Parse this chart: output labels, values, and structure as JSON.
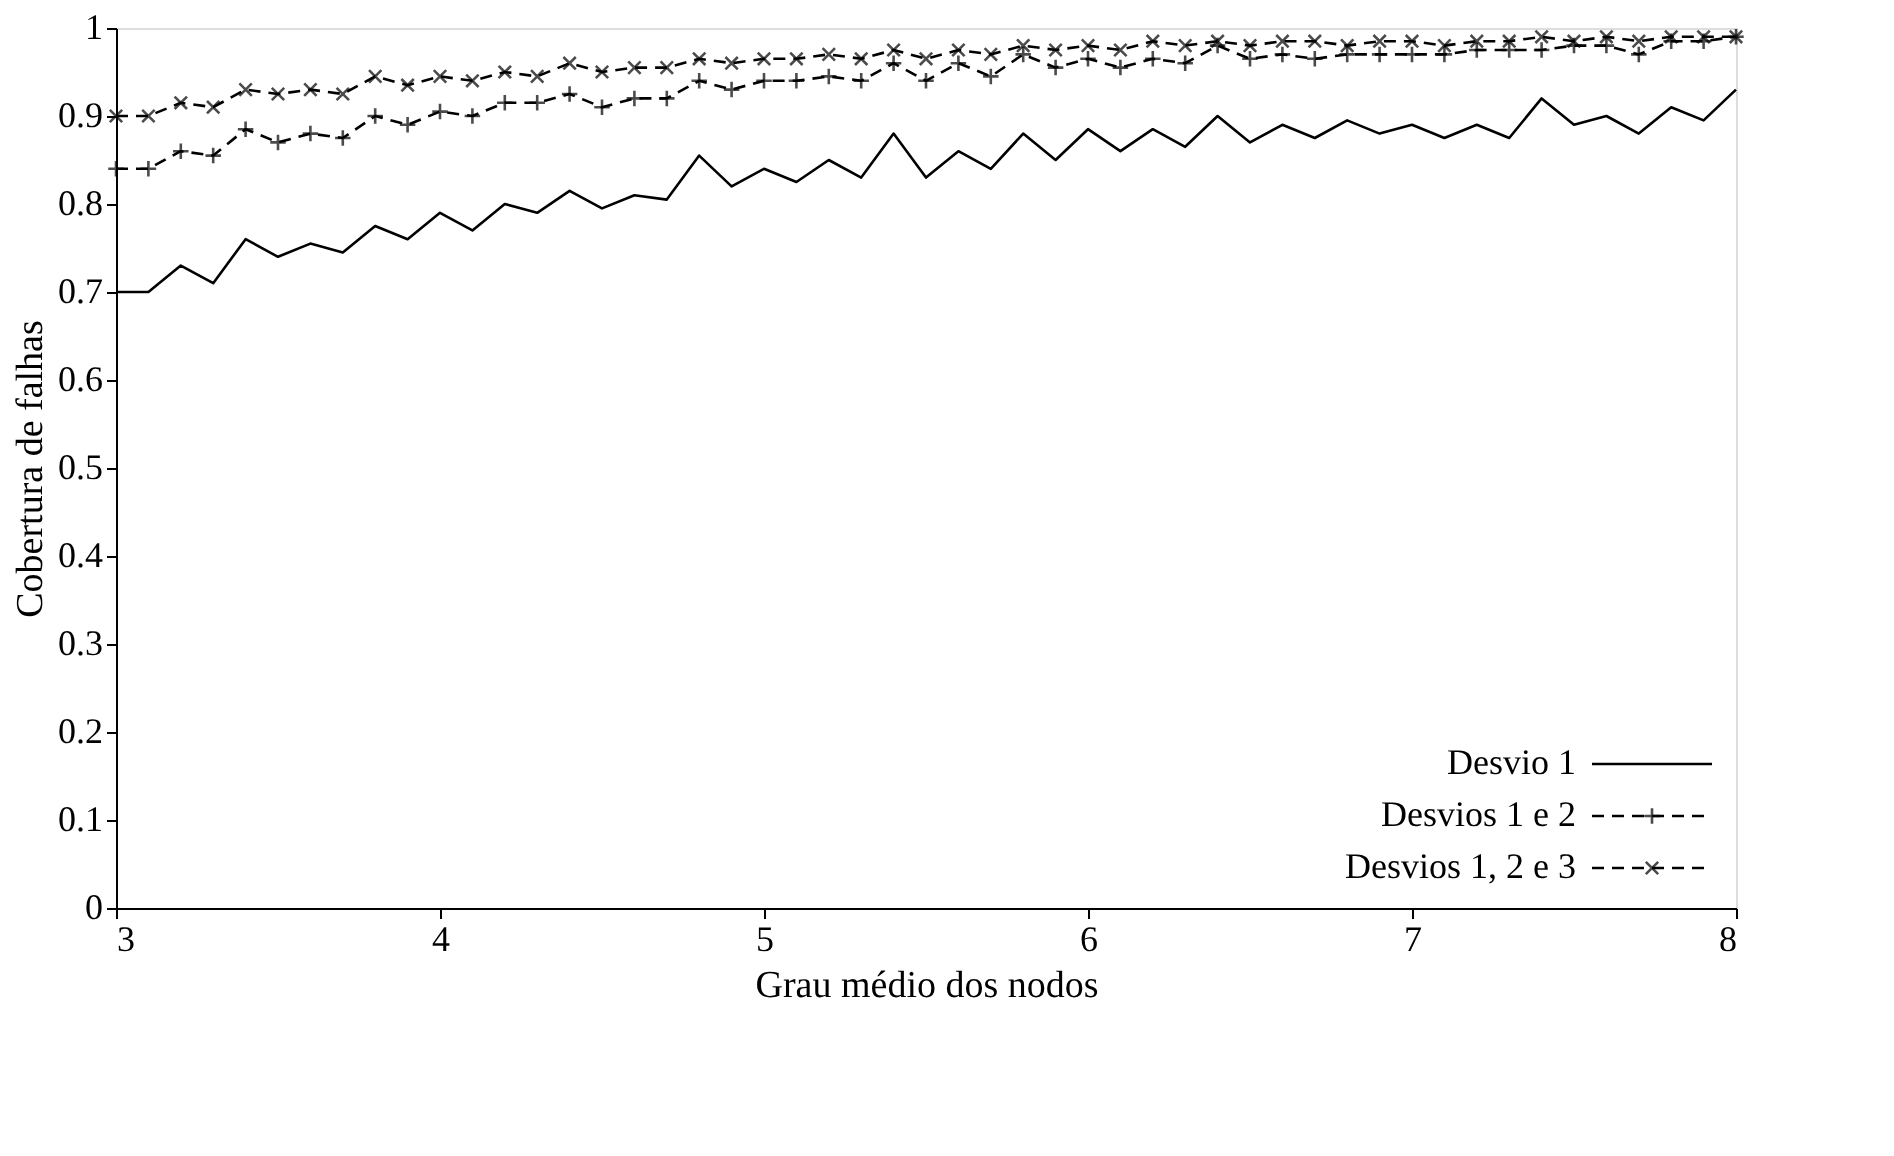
{
  "chart_data": {
    "type": "line",
    "xlabel": "Grau médio dos nodos",
    "ylabel": "Cobertura de falhas",
    "x": [
      3.0,
      3.1,
      3.2,
      3.3,
      3.4,
      3.5,
      3.6,
      3.7,
      3.8,
      3.9,
      4.0,
      4.1,
      4.2,
      4.3,
      4.4,
      4.5,
      4.6,
      4.7,
      4.8,
      4.9,
      5.0,
      5.1,
      5.2,
      5.3,
      5.4,
      5.5,
      5.6,
      5.7,
      5.8,
      5.9,
      6.0,
      6.1,
      6.2,
      6.3,
      6.4,
      6.5,
      6.6,
      6.7,
      6.8,
      6.9,
      7.0,
      7.1,
      7.2,
      7.3,
      7.4,
      7.5,
      7.6,
      7.7,
      7.8,
      7.9,
      8.0
    ],
    "series": [
      {
        "name": "Desvio 1",
        "color": "#000000",
        "marker": "none",
        "line_style": "solid",
        "values": [
          0.7,
          0.7,
          0.73,
          0.71,
          0.76,
          0.74,
          0.755,
          0.745,
          0.775,
          0.76,
          0.79,
          0.77,
          0.8,
          0.79,
          0.815,
          0.795,
          0.81,
          0.805,
          0.855,
          0.82,
          0.84,
          0.825,
          0.85,
          0.83,
          0.88,
          0.83,
          0.86,
          0.84,
          0.88,
          0.85,
          0.885,
          0.86,
          0.885,
          0.865,
          0.9,
          0.87,
          0.89,
          0.875,
          0.895,
          0.88,
          0.89,
          0.875,
          0.89,
          0.875,
          0.92,
          0.89,
          0.9,
          0.88,
          0.91,
          0.895,
          0.93
        ]
      },
      {
        "name": "Desvios 1 e 2",
        "color": "#000000",
        "marker": "cross",
        "line_style": "dashed",
        "values": [
          0.84,
          0.84,
          0.86,
          0.855,
          0.885,
          0.87,
          0.88,
          0.875,
          0.9,
          0.89,
          0.905,
          0.9,
          0.915,
          0.915,
          0.925,
          0.91,
          0.92,
          0.92,
          0.94,
          0.93,
          0.94,
          0.94,
          0.945,
          0.94,
          0.96,
          0.94,
          0.96,
          0.945,
          0.97,
          0.955,
          0.965,
          0.955,
          0.965,
          0.96,
          0.98,
          0.965,
          0.97,
          0.965,
          0.97,
          0.97,
          0.97,
          0.97,
          0.975,
          0.975,
          0.975,
          0.98,
          0.98,
          0.97,
          0.985,
          0.985,
          0.99
        ]
      },
      {
        "name": "Desvios 1, 2 e 3",
        "color": "#000000",
        "marker": "x",
        "line_style": "dashed",
        "values": [
          0.9,
          0.9,
          0.915,
          0.91,
          0.93,
          0.925,
          0.93,
          0.925,
          0.945,
          0.935,
          0.945,
          0.94,
          0.95,
          0.945,
          0.96,
          0.95,
          0.955,
          0.955,
          0.965,
          0.96,
          0.965,
          0.965,
          0.97,
          0.965,
          0.975,
          0.965,
          0.975,
          0.97,
          0.98,
          0.975,
          0.98,
          0.975,
          0.985,
          0.98,
          0.985,
          0.98,
          0.985,
          0.985,
          0.98,
          0.985,
          0.985,
          0.98,
          0.985,
          0.985,
          0.99,
          0.985,
          0.99,
          0.985,
          0.99,
          0.99,
          0.99
        ]
      }
    ],
    "xlim": [
      3,
      8
    ],
    "xticks": [
      3,
      4,
      5,
      6,
      7,
      8
    ],
    "ylim": [
      0,
      1
    ],
    "yticks": [
      0,
      0.1,
      0.2,
      0.3,
      0.4,
      0.5,
      0.6,
      0.7,
      0.8,
      0.9,
      1
    ],
    "grid": false,
    "legend": "bottom right"
  }
}
